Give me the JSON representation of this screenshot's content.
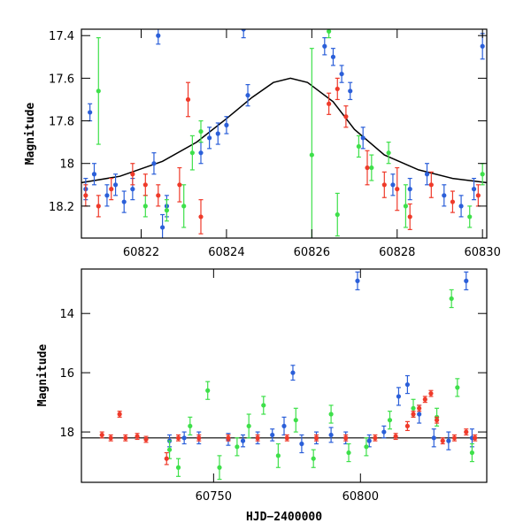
{
  "chart_data": [
    {
      "type": "scatter",
      "title": "",
      "xlabel": "",
      "ylabel": "Magnitude",
      "xlim": [
        60820.6,
        60830.1
      ],
      "ylim": [
        18.35,
        17.37
      ],
      "y_inverted": true,
      "x_ticks": [
        60822,
        60824,
        60826,
        60828,
        60830
      ],
      "y_ticks": [
        17.4,
        17.6,
        17.8,
        18,
        18.2
      ],
      "y_tick_labels": [
        "17.4",
        "17.6",
        "17.8",
        "18",
        "18.2"
      ],
      "model_curve": {
        "description_visible": "smooth black line peaking near 17.6 at x≈60825.5",
        "x": [
          60820.6,
          60821.5,
          60822.5,
          60823.3,
          60824.0,
          60824.6,
          60825.1,
          60825.5,
          60825.9,
          60826.5,
          60827.0,
          60827.7,
          60828.5,
          60829.3,
          60830.1
        ],
        "y": [
          18.09,
          18.06,
          17.99,
          17.9,
          17.79,
          17.69,
          17.62,
          17.6,
          17.62,
          17.71,
          17.84,
          17.96,
          18.03,
          18.07,
          18.09
        ],
        "color": "#000000"
      },
      "series": [
        {
          "color": "#2b5fd9",
          "points": [
            [
              60820.7,
              18.12,
              0.05
            ],
            [
              60820.8,
              17.76,
              0.04
            ],
            [
              60820.9,
              18.05,
              0.05
            ],
            [
              60821.2,
              18.15,
              0.05
            ],
            [
              60821.4,
              18.1,
              0.05
            ],
            [
              60821.6,
              18.18,
              0.05
            ],
            [
              60821.8,
              18.12,
              0.05
            ],
            [
              60822.3,
              18.0,
              0.05
            ],
            [
              60822.4,
              17.4,
              0.04
            ],
            [
              60822.5,
              18.3,
              0.06
            ],
            [
              60822.6,
              18.2,
              0.05
            ],
            [
              60823.4,
              17.95,
              0.05
            ],
            [
              60823.6,
              17.88,
              0.05
            ],
            [
              60823.8,
              17.86,
              0.05
            ],
            [
              60824.0,
              17.82,
              0.04
            ],
            [
              60824.4,
              17.37,
              0.04
            ],
            [
              60824.5,
              17.68,
              0.05
            ],
            [
              60826.3,
              17.45,
              0.04
            ],
            [
              60826.5,
              17.5,
              0.04
            ],
            [
              60826.7,
              17.58,
              0.04
            ],
            [
              60826.9,
              17.66,
              0.04
            ],
            [
              60827.2,
              17.88,
              0.05
            ],
            [
              60827.9,
              18.1,
              0.05
            ],
            [
              60828.3,
              18.12,
              0.05
            ],
            [
              60828.7,
              18.05,
              0.05
            ],
            [
              60829.1,
              18.15,
              0.05
            ],
            [
              60829.5,
              18.2,
              0.05
            ],
            [
              60829.8,
              18.12,
              0.05
            ],
            [
              60830.0,
              17.45,
              0.06
            ]
          ]
        },
        {
          "color": "#3ee04a",
          "points": [
            [
              60821.0,
              17.66,
              0.25
            ],
            [
              60822.1,
              18.2,
              0.05
            ],
            [
              60822.6,
              18.22,
              0.05
            ],
            [
              60823.0,
              18.2,
              0.1
            ],
            [
              60823.2,
              17.95,
              0.08
            ],
            [
              60823.4,
              17.85,
              0.05
            ],
            [
              60826.0,
              17.96,
              0.5
            ],
            [
              60826.4,
              17.38,
              0.03
            ],
            [
              60826.6,
              18.24,
              0.1
            ],
            [
              60827.1,
              17.92,
              0.05
            ],
            [
              60827.4,
              18.02,
              0.06
            ],
            [
              60827.8,
              17.95,
              0.05
            ],
            [
              60828.2,
              18.2,
              0.1
            ],
            [
              60829.7,
              18.25,
              0.05
            ],
            [
              60830.0,
              18.05,
              0.05
            ]
          ]
        },
        {
          "color": "#ef3a2a",
          "points": [
            [
              60820.7,
              18.15,
              0.05
            ],
            [
              60821.0,
              18.2,
              0.05
            ],
            [
              60821.3,
              18.12,
              0.05
            ],
            [
              60821.8,
              18.05,
              0.05
            ],
            [
              60822.1,
              18.1,
              0.05
            ],
            [
              60822.4,
              18.15,
              0.05
            ],
            [
              60822.9,
              18.1,
              0.08
            ],
            [
              60823.1,
              17.7,
              0.08
            ],
            [
              60823.4,
              18.25,
              0.08
            ],
            [
              60826.4,
              17.72,
              0.05
            ],
            [
              60826.6,
              17.65,
              0.05
            ],
            [
              60826.8,
              17.78,
              0.05
            ],
            [
              60827.3,
              18.02,
              0.08
            ],
            [
              60827.7,
              18.1,
              0.06
            ],
            [
              60828.0,
              18.12,
              0.1
            ],
            [
              60828.3,
              18.25,
              0.06
            ],
            [
              60828.8,
              18.1,
              0.06
            ],
            [
              60829.3,
              18.18,
              0.05
            ],
            [
              60829.9,
              18.15,
              0.05
            ]
          ]
        }
      ]
    },
    {
      "type": "scatter",
      "title": "",
      "xlabel": "HJD−2400000",
      "ylabel": "Magnitude",
      "xlim": [
        60705,
        60843
      ],
      "ylim": [
        19.7,
        12.5
      ],
      "y_inverted": true,
      "x_ticks": [
        60750,
        60800
      ],
      "x_tick_labels": [
        "60750",
        "60800"
      ],
      "y_ticks": [
        14,
        16,
        18
      ],
      "y_tick_labels": [
        "14",
        "16",
        "18"
      ],
      "model_line": {
        "y": 18.2,
        "color": "#000000"
      },
      "series": [
        {
          "color": "#2b5fd9",
          "points": [
            [
              60735,
              18.3,
              0.2
            ],
            [
              60740,
              18.2,
              0.2
            ],
            [
              60745,
              18.2,
              0.2
            ],
            [
              60755,
              18.25,
              0.2
            ],
            [
              60760,
              18.3,
              0.2
            ],
            [
              60765,
              18.2,
              0.2
            ],
            [
              60770,
              18.1,
              0.2
            ],
            [
              60774,
              17.8,
              0.3
            ],
            [
              60777,
              16.0,
              0.25
            ],
            [
              60780,
              18.4,
              0.3
            ],
            [
              60785,
              18.2,
              0.2
            ],
            [
              60790,
              18.1,
              0.25
            ],
            [
              60795,
              18.2,
              0.2
            ],
            [
              60799,
              12.9,
              0.3
            ],
            [
              60803,
              18.3,
              0.2
            ],
            [
              60808,
              18.0,
              0.2
            ],
            [
              60813,
              16.8,
              0.3
            ],
            [
              60816,
              16.4,
              0.3
            ],
            [
              60820,
              17.4,
              0.3
            ],
            [
              60825,
              18.2,
              0.3
            ],
            [
              60830,
              18.3,
              0.3
            ],
            [
              60836,
              12.9,
              0.3
            ],
            [
              60838,
              18.2,
              0.3
            ]
          ]
        },
        {
          "color": "#3ee04a",
          "points": [
            [
              60735,
              18.6,
              0.3
            ],
            [
              60738,
              19.2,
              0.3
            ],
            [
              60742,
              17.8,
              0.3
            ],
            [
              60748,
              16.6,
              0.3
            ],
            [
              60752,
              19.2,
              0.4
            ],
            [
              60758,
              18.5,
              0.3
            ],
            [
              60762,
              17.8,
              0.4
            ],
            [
              60767,
              17.1,
              0.3
            ],
            [
              60772,
              18.8,
              0.4
            ],
            [
              60778,
              17.6,
              0.4
            ],
            [
              60784,
              18.9,
              0.3
            ],
            [
              60790,
              17.4,
              0.3
            ],
            [
              60796,
              18.7,
              0.3
            ],
            [
              60802,
              18.5,
              0.3
            ],
            [
              60810,
              17.6,
              0.3
            ],
            [
              60818,
              17.2,
              0.3
            ],
            [
              60826,
              17.5,
              0.3
            ],
            [
              60831,
              13.5,
              0.3
            ],
            [
              60833,
              16.5,
              0.3
            ],
            [
              60838,
              18.7,
              0.3
            ]
          ]
        },
        {
          "color": "#ef3a2a",
          "points": [
            [
              60712,
              18.1,
              0.1
            ],
            [
              60715,
              18.2,
              0.1
            ],
            [
              60718,
              17.4,
              0.1
            ],
            [
              60720,
              18.2,
              0.1
            ],
            [
              60724,
              18.15,
              0.1
            ],
            [
              60727,
              18.25,
              0.1
            ],
            [
              60734,
              18.9,
              0.2
            ],
            [
              60738,
              18.2,
              0.1
            ],
            [
              60745,
              18.2,
              0.1
            ],
            [
              60755,
              18.2,
              0.1
            ],
            [
              60765,
              18.2,
              0.1
            ],
            [
              60775,
              18.2,
              0.1
            ],
            [
              60785,
              18.2,
              0.1
            ],
            [
              60795,
              18.2,
              0.1
            ],
            [
              60805,
              18.2,
              0.1
            ],
            [
              60812,
              18.15,
              0.1
            ],
            [
              60816,
              17.8,
              0.15
            ],
            [
              60818,
              17.4,
              0.1
            ],
            [
              60820,
              17.2,
              0.1
            ],
            [
              60822,
              16.9,
              0.1
            ],
            [
              60824,
              16.7,
              0.1
            ],
            [
              60826,
              17.6,
              0.1
            ],
            [
              60828,
              18.3,
              0.1
            ],
            [
              60832,
              18.2,
              0.1
            ],
            [
              60836,
              18.0,
              0.1
            ],
            [
              60839,
              18.2,
              0.1
            ]
          ]
        }
      ]
    }
  ]
}
